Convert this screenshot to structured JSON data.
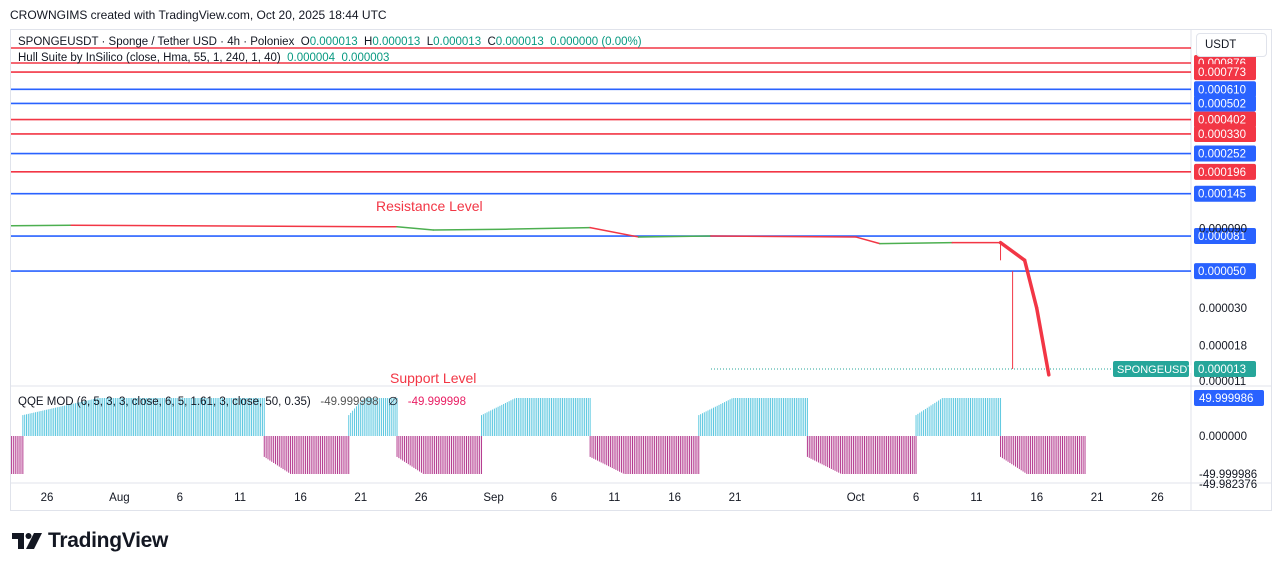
{
  "header": {
    "credit": "CROWNGIMS created with TradingView.com, Oct 20, 2025 18:44 UTC"
  },
  "legend": {
    "symbol": "SPONGEUSDT · Sponge / Tether USD · 4h · Poloniex",
    "o_label": "O",
    "o": "0.000013",
    "h_label": "H",
    "h": "0.000013",
    "l_label": "L",
    "l": "0.000013",
    "c_label": "C",
    "c": "0.000013",
    "change": "0.000000 (0.00%)",
    "indicator": "Hull Suite by InSilico (close, Hma, 55, 1, 240, 1, 40)",
    "ind_v1": "0.000004",
    "ind_v2": "0.000003"
  },
  "qqe_legend": {
    "name": "QQE MOD (6, 5, 3, 3, close, 6, 5, 1.61, 3, close, 50, 0.35)",
    "v1": "-49.999998",
    "empty_symbol": "∅",
    "v2": "-49.999998"
  },
  "unit_label": "USDT",
  "logo": {
    "text": "TradingView",
    "icon": "tradingview-logo-icon"
  },
  "colors": {
    "red_line": "#f23645",
    "blue_line": "#2962ff",
    "hull_up": "#4caf50",
    "hull_down": "#f23645",
    "qqe_up": "#5ec8e0",
    "qqe_down": "#b43b8f",
    "price_tag": "#26a69a"
  },
  "chart_data": {
    "type": "line",
    "x_ticks": [
      "26",
      "Aug",
      "6",
      "11",
      "16",
      "21",
      "26",
      "Sep",
      "6",
      "11",
      "16",
      "21",
      "Oct",
      "6",
      "11",
      "16",
      "21",
      "26"
    ],
    "annotations": {
      "resistance": "Resistance Level",
      "support": "Support Level"
    },
    "levels": [
      {
        "value": "0.000876",
        "color": "red"
      },
      {
        "value": "0.000773",
        "color": "red"
      },
      {
        "value": "0.000610",
        "color": "blue"
      },
      {
        "value": "0.000502",
        "color": "blue"
      },
      {
        "value": "0.000402",
        "color": "red"
      },
      {
        "value": "0.000330",
        "color": "red"
      },
      {
        "value": "0.000252",
        "color": "blue"
      },
      {
        "value": "0.000196",
        "color": "red"
      },
      {
        "value": "0.000145",
        "color": "blue"
      },
      {
        "value": "0.000081",
        "color": "blue"
      },
      {
        "value": "0.000050",
        "color": "blue"
      }
    ],
    "price_axis_labels": [
      "0.000090",
      "0.000030",
      "0.000018",
      "0.000011"
    ],
    "current_price": {
      "symbol": "SPONGEUSDT",
      "value": "0.000013"
    },
    "hull_suite": {
      "segments": [
        {
          "color": "green",
          "from": "Jul 21",
          "to": "Jul 28"
        },
        {
          "color": "red",
          "from": "Jul 28",
          "to": "Aug 24"
        },
        {
          "color": "green",
          "from": "Aug 24",
          "to": "Sep 9"
        },
        {
          "color": "red",
          "from": "Sep 9",
          "to": "Sep 13"
        },
        {
          "color": "green",
          "from": "Sep 13",
          "to": "Sep 19"
        },
        {
          "color": "red",
          "from": "Sep 19",
          "to": "Oct 3"
        },
        {
          "color": "green",
          "from": "Oct 3",
          "to": "Oct 9"
        },
        {
          "color": "red",
          "from": "Oct 9",
          "to": "Oct 18"
        }
      ]
    },
    "qqe": {
      "axis_labels": [
        "49.999986",
        "0.000000",
        "-49.999986",
        "-49.982376"
      ],
      "blocks": [
        {
          "sign": "neg",
          "from": "Jul 21",
          "to": "Jul 24"
        },
        {
          "sign": "pos",
          "from": "Jul 24",
          "to": "Aug 13"
        },
        {
          "sign": "neg",
          "from": "Aug 13",
          "to": "Aug 20"
        },
        {
          "sign": "pos",
          "from": "Aug 20",
          "to": "Aug 24"
        },
        {
          "sign": "neg",
          "from": "Aug 24",
          "to": "Aug 31"
        },
        {
          "sign": "pos",
          "from": "Aug 31",
          "to": "Sep 9"
        },
        {
          "sign": "neg",
          "from": "Sep 9",
          "to": "Sep 18"
        },
        {
          "sign": "pos",
          "from": "Sep 18",
          "to": "Sep 27"
        },
        {
          "sign": "neg",
          "from": "Sep 27",
          "to": "Oct 6"
        },
        {
          "sign": "pos",
          "from": "Oct 6",
          "to": "Oct 13"
        },
        {
          "sign": "neg",
          "from": "Oct 13",
          "to": "Oct 20"
        }
      ]
    }
  }
}
